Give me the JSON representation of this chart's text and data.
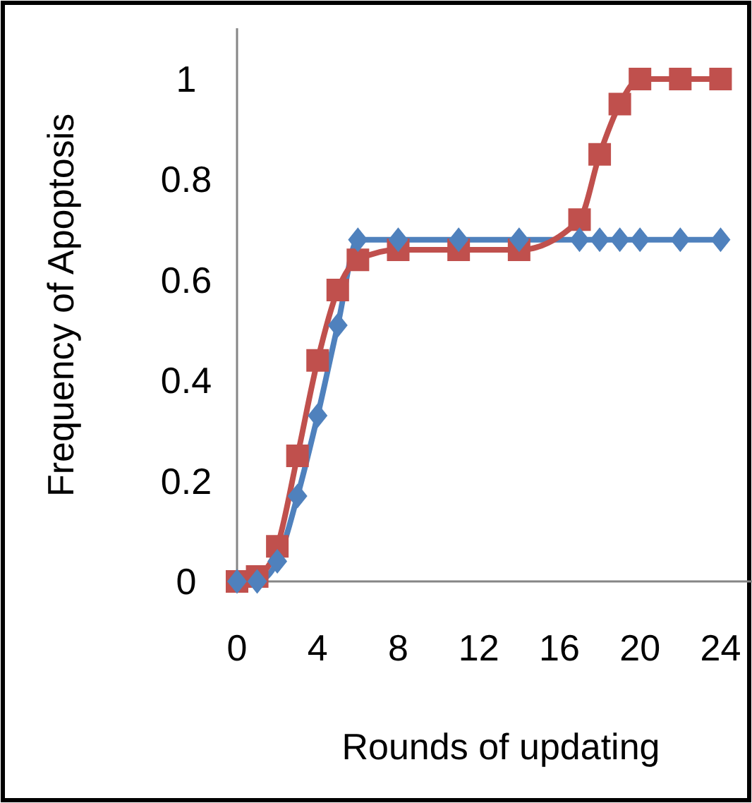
{
  "chart_data": {
    "type": "line",
    "xlabel": "Rounds of updating",
    "ylabel": "Frequency of Apoptosis",
    "xlim": [
      0,
      25
    ],
    "xticks": [
      0,
      4,
      8,
      12,
      16,
      20,
      24
    ],
    "ylim": [
      0,
      1.1
    ],
    "yticks": [
      0,
      0.2,
      0.4,
      0.6,
      0.8,
      1
    ],
    "grid": false,
    "line_style": "solid",
    "series": [
      {
        "color": "#4f81bd",
        "marker": "diamond",
        "x": [
          0,
          1,
          2,
          3,
          4,
          5,
          6,
          8,
          11,
          14,
          17,
          18,
          19,
          20,
          22,
          24
        ],
        "values": [
          0,
          0,
          0.04,
          0.17,
          0.33,
          0.51,
          0.68,
          0.68,
          0.68,
          0.68,
          0.68,
          0.68,
          0.68,
          0.68,
          0.68,
          0.68
        ]
      },
      {
        "color": "#c0504d",
        "marker": "square",
        "x": [
          0,
          1,
          2,
          3,
          4,
          5,
          6,
          8,
          11,
          14,
          17,
          18,
          19,
          20,
          22,
          24
        ],
        "values": [
          0,
          0.01,
          0.07,
          0.25,
          0.44,
          0.58,
          0.64,
          0.66,
          0.66,
          0.66,
          0.72,
          0.85,
          0.95,
          1,
          1,
          1
        ]
      }
    ]
  }
}
